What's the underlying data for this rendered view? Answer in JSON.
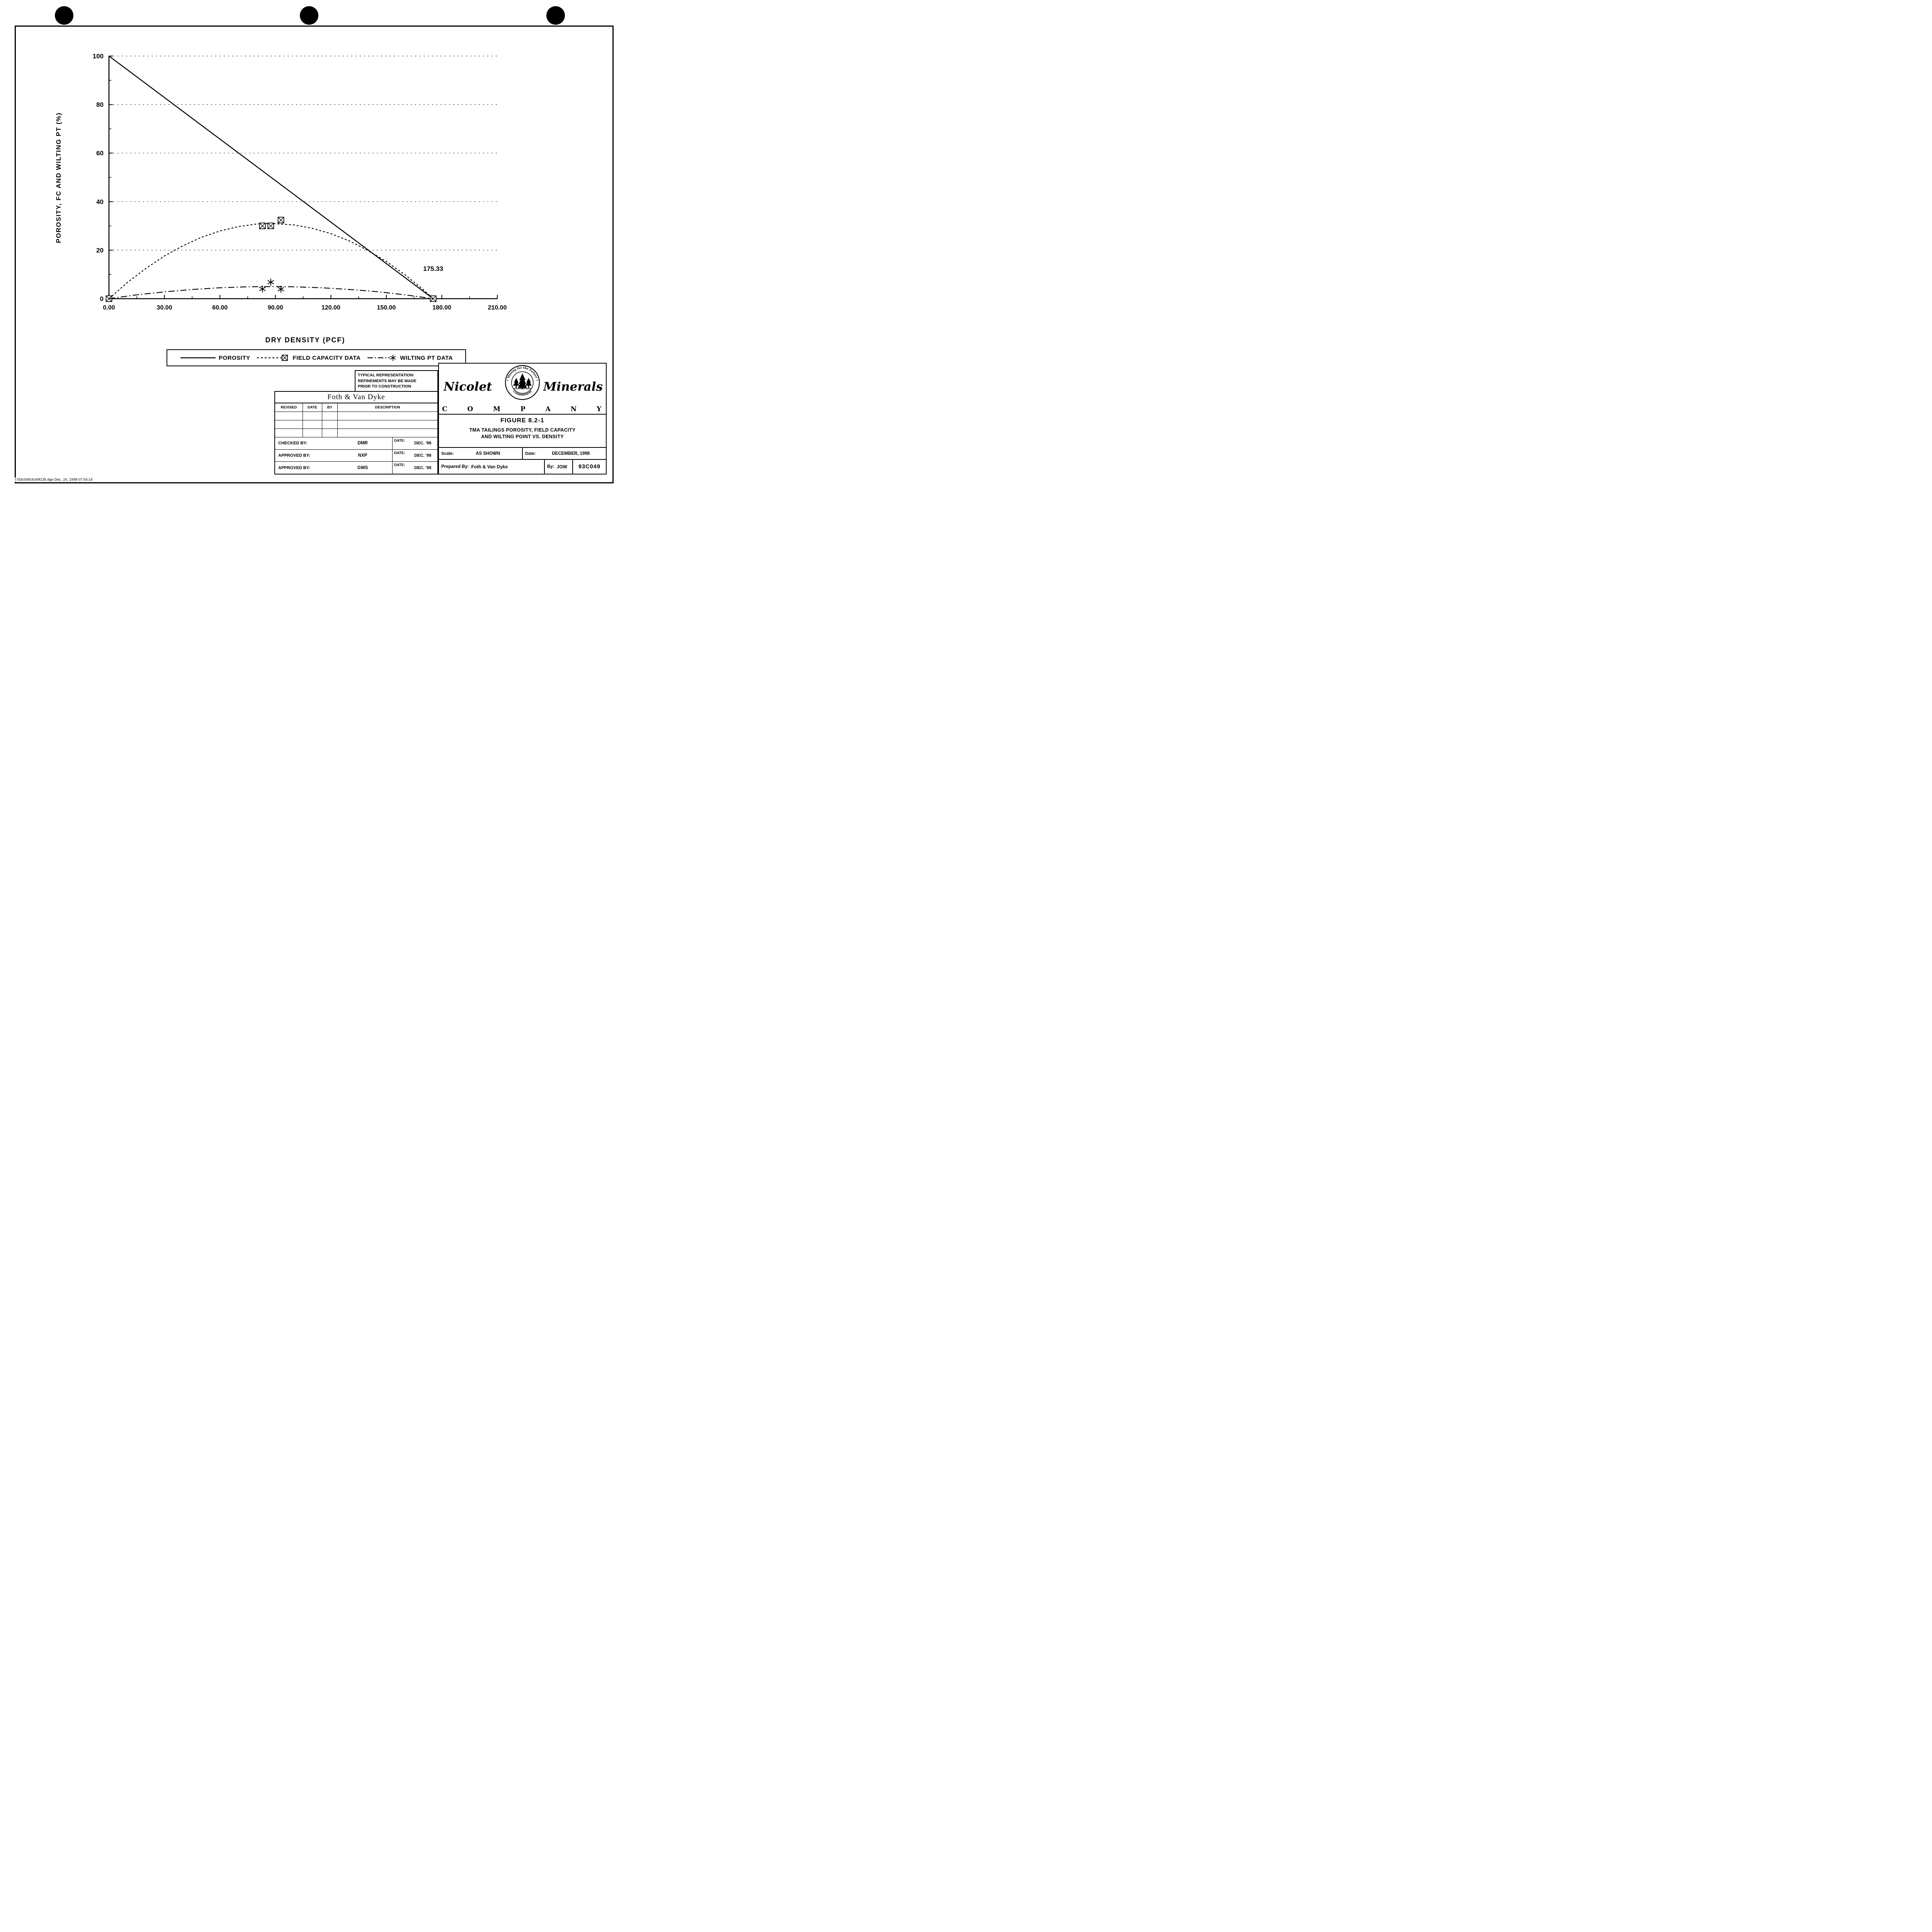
{
  "chart_data": {
    "type": "line",
    "title": "",
    "xlabel": "DRY DENSITY (PCF)",
    "ylabel": "POROSITY, FC AND WILTING PT (%)",
    "xlim": [
      0,
      210
    ],
    "ylim": [
      0,
      100
    ],
    "x_ticks": [
      0,
      30,
      60,
      90,
      120,
      150,
      180,
      210
    ],
    "x_tick_labels": [
      "0.00",
      "30.00",
      "60.00",
      "90.00",
      "120.00",
      "150.00",
      "180.00",
      "210.00"
    ],
    "x_minor_ticks": [
      15,
      45,
      75,
      105,
      135,
      165,
      195
    ],
    "y_ticks": [
      0,
      20,
      40,
      60,
      80,
      100
    ],
    "y_tick_labels": [
      "0",
      "20",
      "40",
      "60",
      "80",
      "100"
    ],
    "y_minor_ticks": [
      10,
      30,
      50,
      70,
      90
    ],
    "grid": {
      "y_dashed": [
        20,
        40,
        60,
        80,
        100
      ]
    },
    "annotation": {
      "text": "175.33",
      "x": 175.33,
      "y": 11.5
    },
    "series": [
      {
        "name": "POROSITY",
        "line": "solid",
        "curve": [
          [
            0,
            100
          ],
          [
            175.33,
            0
          ]
        ],
        "data_points": []
      },
      {
        "name": "FIELD CAPACITY DATA",
        "line": "dashed",
        "marker": "boxed-x",
        "curve": [
          [
            0,
            0
          ],
          [
            10,
            6.7
          ],
          [
            20,
            12.5
          ],
          [
            30,
            17.6
          ],
          [
            40,
            21.8
          ],
          [
            50,
            25.3
          ],
          [
            60,
            27.9
          ],
          [
            70,
            29.7
          ],
          [
            80,
            30.8
          ],
          [
            87.7,
            31
          ],
          [
            100,
            30.4
          ],
          [
            110,
            29
          ],
          [
            120,
            26.8
          ],
          [
            130,
            23.8
          ],
          [
            140,
            19.9
          ],
          [
            150,
            15.3
          ],
          [
            160,
            9.9
          ],
          [
            170,
            3.7
          ],
          [
            175.33,
            0
          ]
        ],
        "data_points": [
          [
            0,
            0
          ],
          [
            83,
            30
          ],
          [
            87.5,
            30
          ],
          [
            93,
            32.4
          ],
          [
            175.33,
            0
          ]
        ]
      },
      {
        "name": "WILTING PT DATA",
        "line": "dash-dot",
        "marker": "asterisk",
        "curve": [
          [
            0,
            0
          ],
          [
            15,
            1.6
          ],
          [
            30,
            2.8
          ],
          [
            45,
            3.8
          ],
          [
            60,
            4.5
          ],
          [
            75,
            4.9
          ],
          [
            87.7,
            5
          ],
          [
            100,
            4.9
          ],
          [
            115,
            4.5
          ],
          [
            130,
            3.8
          ],
          [
            145,
            2.9
          ],
          [
            160,
            1.6
          ],
          [
            175.33,
            0
          ]
        ],
        "data_points": [
          [
            83,
            4
          ],
          [
            87.5,
            6.8
          ],
          [
            93,
            3.9
          ]
        ]
      }
    ]
  },
  "note": {
    "line1": "TYPICAL REPRESENTATION:",
    "line2": "REFINEMENTS MAY BE MADE",
    "line3": "PRIOR TO CONSTRUCTION"
  },
  "title_block": {
    "company": "Foth & Van Dyke",
    "columns": [
      "REVISED",
      "DATE",
      "BY",
      "DESCRIPTION"
    ],
    "signoff": [
      {
        "label": "CHECKED BY:",
        "value": "DMR",
        "date_label": "DATE:",
        "date_value": "DEC. '98"
      },
      {
        "label": "APPROVED BY:",
        "value": "NXP",
        "date_label": "DATE:",
        "date_value": "DEC. '98"
      },
      {
        "label": "APPROVED BY:",
        "value": "GWS",
        "date_label": "DATE:",
        "date_value": "DEC. '98"
      }
    ]
  },
  "company_block": {
    "name_left": "Nicolet",
    "name_right": "Minerals",
    "name_bottom": "C O M P A N Y",
    "seal_text_top": "• Mining for the Future •",
    "seal_text_bottom": "Commitment",
    "figure_label": "FIGURE 8.2-1",
    "figure_title_line1": "TMA TAILINGS POROSITY, FIELD CAPACITY",
    "figure_title_line2": "AND WILTING POINT VS. DENSITY",
    "scale_label": "Scale:",
    "scale_value": "AS SHOWN",
    "date_label": "Date:",
    "date_value": "DECEMBER, 1998",
    "prepared_label": "Prepared By:",
    "prepared_value": "Foth & Van Dyke",
    "by_label": "By:",
    "by_value": "JOW",
    "drawing_number": "93C049"
  },
  "footer": {
    "path_text": "I:\\93c049\\3c49f135.dgn  Dec. 24, 1998  07:54:14"
  }
}
